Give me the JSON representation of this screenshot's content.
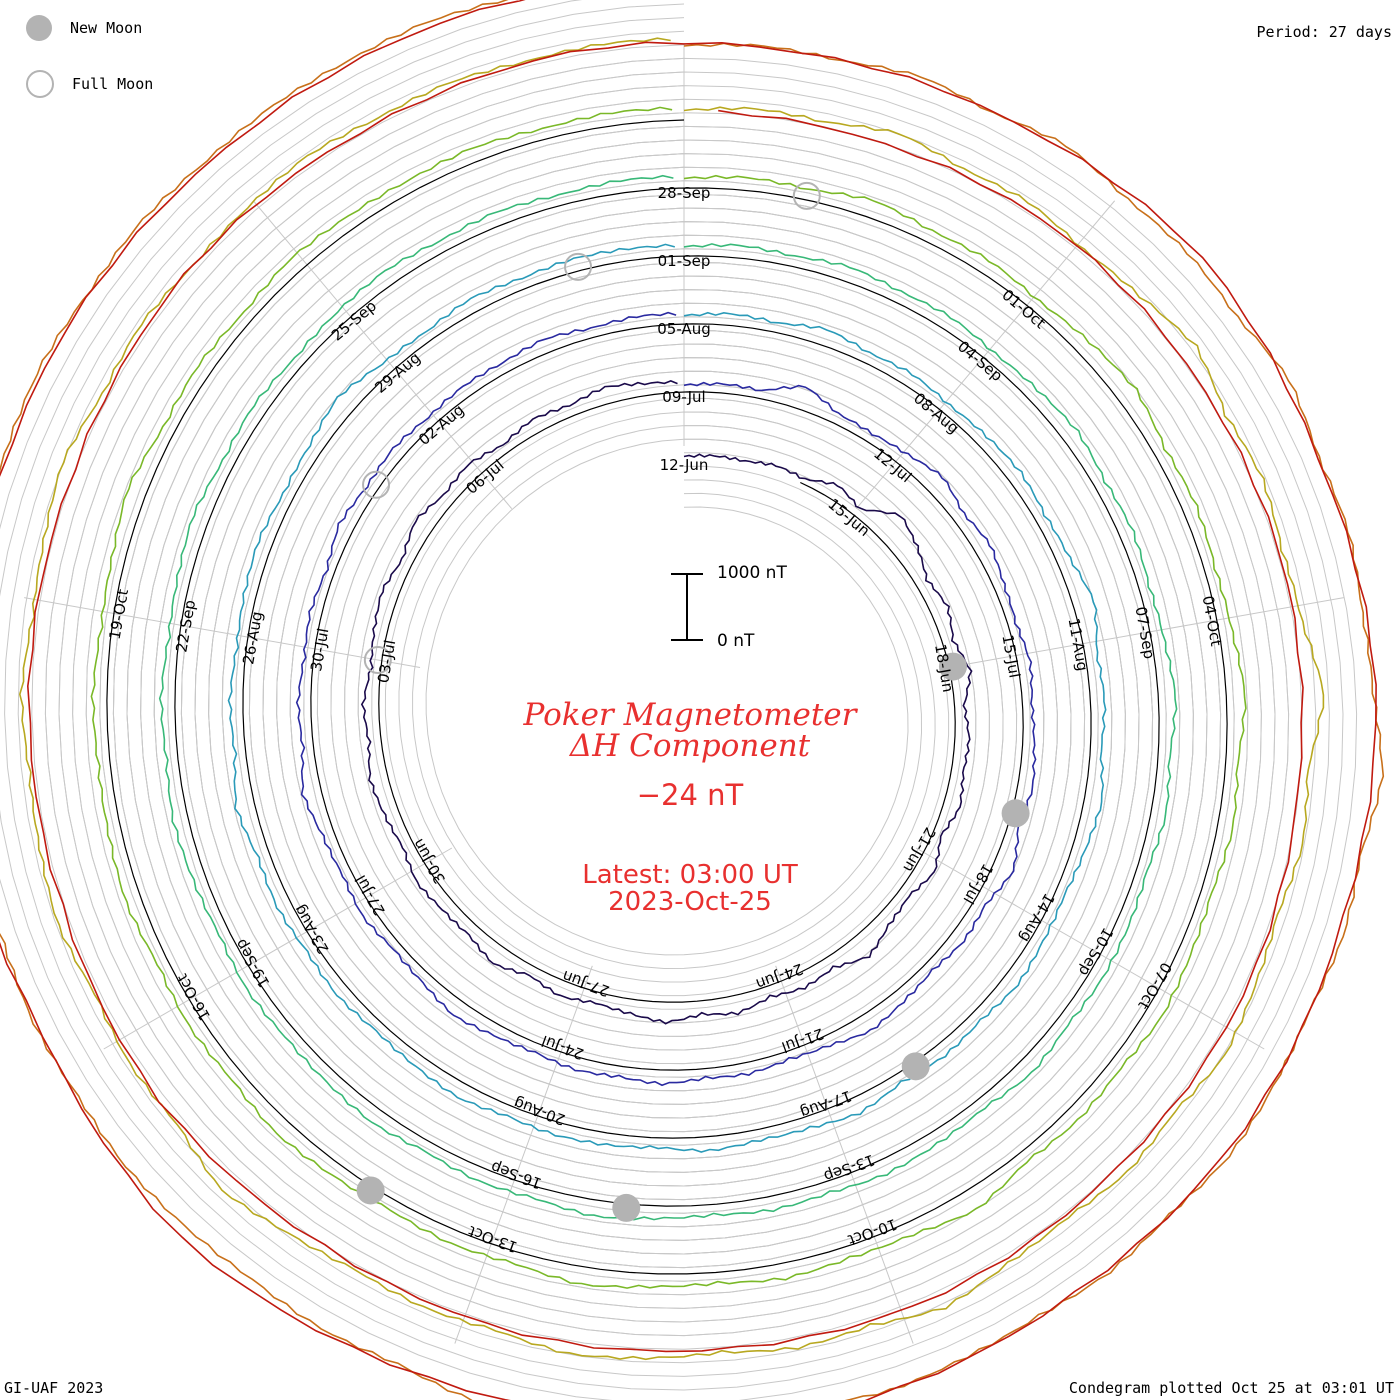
{
  "legend": {
    "new_moon_label": "New Moon",
    "full_moon_label": "Full Moon"
  },
  "period_label": "Period: 27 days",
  "credit": "GI-UAF 2023",
  "plotted": "Condegram plotted Oct 25 at 03:01 UT",
  "title": {
    "line1": "Poker Magnetometer",
    "line2": "ΔH Component",
    "value": "−24 nT",
    "latest": "Latest: 03:00 UT",
    "date": "2023-Oct-25"
  },
  "scale": {
    "top_label": "1000 nT",
    "bottom_label": "0 nT"
  },
  "chart_data": {
    "type": "line",
    "subtype": "spiral condegram",
    "period_days": 27,
    "start_date": "2023-Jun-12",
    "end_date": "2023-Oct-25",
    "series": [
      {
        "color": "#1a0a4a",
        "values": [
          0.2,
          0.3,
          0.2,
          0.5,
          0.3,
          1.2,
          0.6,
          2.5,
          1.8,
          0.9,
          1.4,
          0.8,
          1.6,
          0.7,
          1.1,
          0.9,
          1.3,
          0.6,
          1.5,
          0.8,
          1.1,
          1.9,
          0.9,
          1.2,
          0.8,
          1.4,
          1.0,
          1.6,
          1.1,
          0.8,
          1.2,
          0.7,
          1.5,
          0.9,
          1.0,
          1.3,
          0.8,
          1.1,
          1.4,
          0.9,
          1.2,
          0.7,
          1.0,
          1.3,
          0.8,
          1.5,
          0.9,
          1.2,
          0.6,
          1.1,
          0.8,
          1.3,
          0.9,
          0.7
        ]
      },
      {
        "color": "#2a2aa0",
        "values": [
          0.4,
          0.6,
          0.5,
          1.8,
          0.7,
          0.6,
          0.9,
          1.5,
          0.8,
          1.2,
          0.7,
          0.5,
          0.9,
          0.6,
          0.8,
          1.1,
          0.7,
          1.6,
          0.8,
          1.0,
          0.6,
          0.9,
          1.3,
          0.7,
          0.5,
          0.8,
          0.6,
          1.0,
          0.7,
          0.9,
          0.6,
          0.8,
          1.2,
          0.7,
          0.5,
          0.9,
          0.6,
          0.8,
          1.4,
          0.7,
          0.9,
          0.6,
          0.8,
          0.5,
          1.1,
          0.7,
          0.9,
          0.6,
          0.8,
          0.7,
          1.0,
          0.6,
          0.8,
          0.7
        ]
      },
      {
        "color": "#2a9ab8",
        "values": [
          0.5,
          0.8,
          0.6,
          1.2,
          0.7,
          0.9,
          0.6,
          0.8,
          1.0,
          0.7,
          0.9,
          1.6,
          0.8,
          1.0,
          0.7,
          1.3,
          0.9,
          0.6,
          0.8,
          1.1,
          0.7,
          0.9,
          0.6,
          1.2,
          0.8,
          0.7,
          1.0,
          0.6,
          0.8,
          0.9,
          0.7,
          1.1,
          0.8,
          0.6,
          0.9,
          0.7,
          1.0,
          0.8,
          1.4,
          0.7,
          0.9,
          0.6,
          0.8,
          1.0,
          0.7,
          0.9,
          1.5,
          0.8,
          0.6,
          1.0,
          0.7,
          0.9,
          0.8,
          0.7
        ]
      },
      {
        "color": "#38b878",
        "values": [
          0.6,
          0.9,
          0.7,
          1.1,
          0.8,
          1.0,
          0.7,
          0.9,
          1.2,
          0.8,
          1.0,
          0.7,
          0.9,
          1.3,
          0.8,
          1.1,
          0.7,
          0.9,
          1.0,
          0.8,
          1.2,
          0.7,
          0.9,
          1.1,
          0.8,
          1.0,
          0.7,
          0.9,
          1.2,
          0.8,
          1.0,
          0.7,
          1.1,
          0.9,
          0.8,
          1.0,
          0.7,
          0.9,
          1.1,
          0.8,
          1.0,
          0.7,
          0.9,
          1.2,
          0.8,
          1.0,
          0.7,
          0.9,
          1.1,
          0.8,
          1.0,
          0.7,
          0.9,
          0.8
        ]
      },
      {
        "color": "#7ab828",
        "values": [
          0.7,
          1.0,
          0.8,
          1.4,
          0.9,
          1.1,
          0.8,
          1.2,
          1.6,
          0.9,
          1.1,
          0.8,
          1.0,
          1.5,
          0.9,
          1.2,
          0.8,
          1.0,
          1.3,
          0.9,
          1.1,
          0.8,
          1.7,
          1.0,
          0.9,
          1.2,
          0.8,
          1.0,
          1.4,
          0.9,
          1.1,
          0.8,
          1.0,
          1.3,
          0.9,
          1.1,
          0.8,
          1.2,
          1.0,
          0.9,
          1.1,
          0.8,
          1.0,
          1.5,
          0.9,
          1.1,
          0.8,
          1.2,
          1.0,
          0.9,
          1.1,
          0.8,
          1.0,
          0.9
        ]
      },
      {
        "color": "#b8a820",
        "values": [
          0.8,
          1.2,
          1.0,
          1.8,
          1.1,
          1.4,
          0.9,
          1.3,
          2.2,
          1.1,
          1.5,
          1.0,
          1.3,
          2.5,
          1.2,
          1.6,
          1.0,
          1.4,
          1.9,
          1.1,
          1.5,
          1.0,
          1.3,
          2.1,
          1.2,
          1.5,
          1.0,
          1.4,
          1.7,
          1.1,
          1.3,
          1.0,
          1.5,
          2.3,
          1.2,
          1.4,
          1.0,
          1.6,
          1.3,
          1.1,
          1.5,
          1.0,
          1.3,
          1.8,
          1.1,
          1.4,
          1.0,
          1.2,
          1.5,
          1.1,
          1.3,
          1.0,
          1.2,
          1.1
        ]
      },
      {
        "color": "#c8701a",
        "values": [
          0.6,
          0.9,
          0.7,
          1.3,
          0.8,
          1.5,
          0.9,
          1.1,
          0.8,
          1.6,
          0.9,
          1.2,
          0.8,
          1.0,
          1.9,
          0.9,
          1.2,
          0.8,
          1.1,
          1.4,
          0.9,
          1.2,
          0.8,
          1.0,
          1.3,
          0.9,
          1.1,
          0.8,
          1.2,
          1.7,
          0.9,
          1.1,
          0.8,
          1.0,
          1.2,
          0.9,
          1.1,
          0.8,
          1.3,
          1.0,
          0.9,
          1.1,
          0.8,
          1.0,
          1.2,
          0.9,
          1.1,
          0.8,
          1.0,
          0.9,
          1.1,
          0.8,
          1.0,
          0.9
        ]
      },
      {
        "color": "#c01a10",
        "values": [
          0.5,
          0.7,
          0.6,
          0.9,
          0.7,
          1.6,
          0.9,
          2.0,
          1.2,
          0.8,
          1.5,
          0.9,
          1.1,
          0.8,
          1.3,
          0.9,
          1.8,
          1.0,
          0.8,
          1.1,
          0.9,
          1.2,
          0.8,
          1.0,
          0.9,
          1.3,
          0.8,
          1.0,
          0.9,
          1.1,
          0.8,
          1.0,
          0.7,
          0.9,
          0.8,
          1.0,
          0.7,
          0.9
        ]
      }
    ],
    "scale_nT": [
      0,
      1000
    ],
    "current_value_nT": -24,
    "date_labels": [
      "12-Jun",
      "15-Jun",
      "18-Jun",
      "21-Jun",
      "24-Jun",
      "27-Jun",
      "30-Jun",
      "03-Jul",
      "06-Jul",
      "09-Jul",
      "12-Jul",
      "15-Jul",
      "18-Jul",
      "21-Jul",
      "24-Jul",
      "27-Jul",
      "30-Jul",
      "02-Aug",
      "05-Aug",
      "08-Aug",
      "11-Aug",
      "14-Aug",
      "17-Aug",
      "20-Aug",
      "23-Aug",
      "26-Aug",
      "29-Aug",
      "01-Sep",
      "04-Sep",
      "07-Sep",
      "10-Sep",
      "13-Sep",
      "16-Sep",
      "19-Sep",
      "22-Sep",
      "25-Sep",
      "28-Sep",
      "01-Oct",
      "04-Oct",
      "07-Oct",
      "10-Oct",
      "13-Oct",
      "16-Oct",
      "19-Oct"
    ],
    "new_moons": [
      "18-Jun",
      "17-Jul",
      "16-Aug",
      "15-Sep",
      "14-Oct"
    ],
    "full_moons": [
      "03-Jul",
      "01-Aug",
      "31-Aug",
      "29-Sep"
    ]
  }
}
